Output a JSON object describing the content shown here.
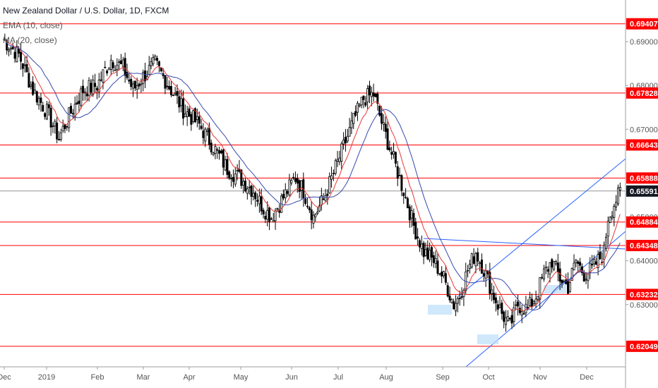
{
  "chart_data": {
    "type": "candlestick",
    "title": "New Zealand Dollar / U.S. Dollar, 1D, FXCM",
    "indicators": [
      {
        "name": "EMA (10, close)",
        "color": "#e53935"
      },
      {
        "name": "MA (20, close)",
        "color": "#3949ab"
      }
    ],
    "ylim": [
      0.6158,
      0.6995
    ],
    "y_ticks": [
      0.69,
      0.68,
      0.67,
      0.65,
      0.64,
      0.63
    ],
    "y_tick_labels": [
      "0.69000",
      "0.68000",
      "0.67000",
      "0.65000",
      "0.64000",
      "0.63000"
    ],
    "x_labels": [
      "Dec",
      "2019",
      "Feb",
      "Mar",
      "Apr",
      "May",
      "Jun",
      "Jul",
      "Aug",
      "Sep",
      "Oct",
      "Nov",
      "Dec"
    ],
    "horizontal_levels": [
      0.69407,
      0.67828,
      0.66643,
      0.65888,
      0.64884,
      0.64348,
      0.63232,
      0.62049
    ],
    "horizontal_level_labels": [
      "0.69407",
      "0.67828",
      "0.66643",
      "0.65888",
      "0.64884",
      "0.64348",
      "0.63232",
      "0.62049"
    ],
    "current_price": 0.65591,
    "current_price_label": "0.65591",
    "level_color": "#ff0000",
    "trendline_color": "#2962ff",
    "close_path": [
      [
        0,
        0.6905
      ],
      [
        8,
        0.687
      ],
      [
        15,
        0.679
      ],
      [
        22,
        0.674
      ],
      [
        28,
        0.668
      ],
      [
        33,
        0.673
      ],
      [
        40,
        0.679
      ],
      [
        47,
        0.68
      ],
      [
        54,
        0.686
      ],
      [
        60,
        0.684
      ],
      [
        65,
        0.679
      ],
      [
        70,
        0.682
      ],
      [
        76,
        0.685
      ],
      [
        84,
        0.679
      ],
      [
        90,
        0.6745
      ],
      [
        98,
        0.671
      ],
      [
        105,
        0.666
      ],
      [
        112,
        0.661
      ],
      [
        118,
        0.659
      ],
      [
        125,
        0.656
      ],
      [
        130,
        0.652
      ],
      [
        134,
        0.65
      ],
      [
        140,
        0.6545
      ],
      [
        146,
        0.659
      ],
      [
        150,
        0.656
      ],
      [
        155,
        0.65
      ],
      [
        160,
        0.654
      ],
      [
        165,
        0.66
      ],
      [
        170,
        0.666
      ],
      [
        175,
        0.672
      ],
      [
        180,
        0.677
      ],
      [
        185,
        0.678
      ],
      [
        190,
        0.67
      ],
      [
        195,
        0.663
      ],
      [
        200,
        0.656
      ],
      [
        205,
        0.648
      ],
      [
        210,
        0.642
      ],
      [
        215,
        0.64
      ],
      [
        220,
        0.636
      ],
      [
        225,
        0.63
      ],
      [
        228,
        0.632
      ],
      [
        232,
        0.638
      ],
      [
        236,
        0.642
      ],
      [
        240,
        0.638
      ],
      [
        245,
        0.632
      ],
      [
        249,
        0.628
      ],
      [
        253,
        0.625
      ],
      [
        257,
        0.63
      ],
      [
        262,
        0.629
      ],
      [
        266,
        0.632
      ],
      [
        270,
        0.637
      ],
      [
        274,
        0.64
      ],
      [
        278,
        0.636
      ],
      [
        282,
        0.634
      ],
      [
        286,
        0.64
      ],
      [
        290,
        0.637
      ],
      [
        294,
        0.638
      ],
      [
        297,
        0.64
      ],
      [
        300,
        0.642
      ],
      [
        301,
        0.646
      ],
      [
        302,
        0.65
      ],
      [
        304,
        0.652
      ],
      [
        306,
        0.654
      ],
      [
        308,
        0.6555
      ]
    ]
  }
}
